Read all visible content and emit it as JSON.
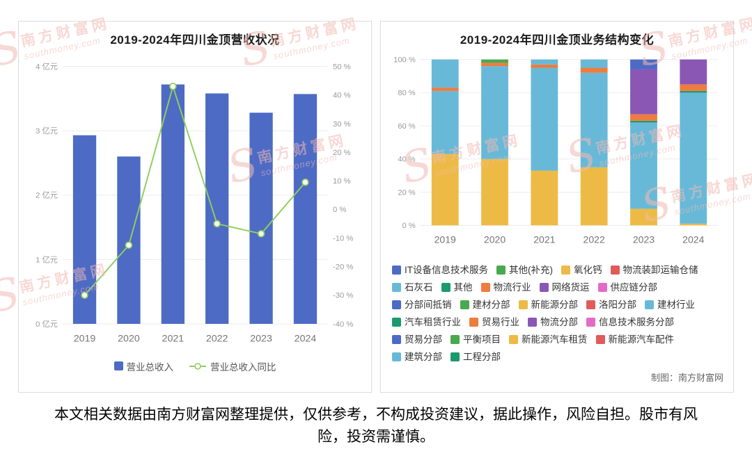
{
  "page": {
    "credit": "制图：南方财富网",
    "disclaimer": "本文相关数据由南方财富网整理提供，仅供参考，不构成投资建议，据此操作，风险自担。股市有风险，投资需谨慎。"
  },
  "watermark": {
    "initial": "S",
    "brand": "南方财富网",
    "domain": "southmoney.com"
  },
  "chart_data": [
    {
      "id": "revenue",
      "type": "bar",
      "title": "2019-2024年四川金顶营收状况",
      "categories": [
        "2019",
        "2020",
        "2021",
        "2022",
        "2023",
        "2024"
      ],
      "series": [
        {
          "name": "营业总收入",
          "kind": "bar",
          "axis": "left",
          "color": "#4d6bc5",
          "values": [
            2.93,
            2.6,
            3.72,
            3.58,
            3.28,
            3.57
          ]
        },
        {
          "name": "营业总收入同比",
          "kind": "line",
          "axis": "right",
          "color": "#8fce5f",
          "values": [
            -30,
            -12.5,
            43,
            -5,
            -8.5,
            9.5
          ]
        }
      ],
      "left_axis": {
        "min": 0,
        "max": 4,
        "step": 1,
        "suffix": " 亿元"
      },
      "right_axis": {
        "min": -40,
        "max": 50,
        "step": 10,
        "suffix": " %"
      },
      "grid": true,
      "legend_position": "bottom"
    },
    {
      "id": "structure",
      "type": "stacked-bar-percent",
      "title": "2019-2024年四川金顶业务结构变化",
      "categories": [
        "2019",
        "2020",
        "2021",
        "2022",
        "2023",
        "2024"
      ],
      "y_axis": {
        "min": 0,
        "max": 100,
        "step": 20,
        "suffix": " %"
      },
      "stacks": [
        {
          "year": "2019",
          "segments": [
            {
              "name": "氧化钙",
              "value": 43,
              "color": "#edbb45"
            },
            {
              "name": "石灰石",
              "value": 38,
              "color": "#68b9d8"
            },
            {
              "name": "物流行业",
              "value": 2,
              "color": "#ee7c3e"
            },
            {
              "name": "建材行业",
              "value": 17,
              "color": "#68b9d8"
            }
          ]
        },
        {
          "year": "2020",
          "segments": [
            {
              "name": "氧化钙",
              "value": 40,
              "color": "#edbb45"
            },
            {
              "name": "石灰石",
              "value": 56,
              "color": "#68b9d8"
            },
            {
              "name": "物流行业",
              "value": 2,
              "color": "#ee7c3e"
            },
            {
              "name": "其他(补充)",
              "value": 2,
              "color": "#49a94f"
            }
          ]
        },
        {
          "year": "2021",
          "segments": [
            {
              "name": "氧化钙",
              "value": 33,
              "color": "#edbb45"
            },
            {
              "name": "石灰石",
              "value": 62,
              "color": "#68b9d8"
            },
            {
              "name": "物流行业",
              "value": 2,
              "color": "#ee7c3e"
            },
            {
              "name": "建材行业",
              "value": 3,
              "color": "#68b9d8"
            }
          ]
        },
        {
          "year": "2022",
          "segments": [
            {
              "name": "氧化钙",
              "value": 35,
              "color": "#edbb45"
            },
            {
              "name": "石灰石",
              "value": 57,
              "color": "#68b9d8"
            },
            {
              "name": "物流行业",
              "value": 3,
              "color": "#ee7c3e"
            },
            {
              "name": "建材行业",
              "value": 5,
              "color": "#68b9d8"
            }
          ]
        },
        {
          "year": "2023",
          "segments": [
            {
              "name": "氧化钙",
              "value": 10,
              "color": "#edbb45"
            },
            {
              "name": "石灰石",
              "value": 52,
              "color": "#68b9d8"
            },
            {
              "name": "其他",
              "value": 1,
              "color": "#1c9a6e"
            },
            {
              "name": "物流行业",
              "value": 4,
              "color": "#ee7c3e"
            },
            {
              "name": "网络货运",
              "value": 27,
              "color": "#8a57b5"
            },
            {
              "name": "分部间抵销",
              "value": 6,
              "color": "#4d6bc5"
            }
          ]
        },
        {
          "year": "2024",
          "segments": [
            {
              "name": "氧化钙",
              "value": 1,
              "color": "#edbb45"
            },
            {
              "name": "建筑分部",
              "value": 79,
              "color": "#68b9d8"
            },
            {
              "name": "其他",
              "value": 1,
              "color": "#1c9a6e"
            },
            {
              "name": "物流行业",
              "value": 4,
              "color": "#ee7c3e"
            },
            {
              "name": "网络货运",
              "value": 15,
              "color": "#8a57b5"
            }
          ]
        }
      ],
      "legend": [
        {
          "label": "IT设备信息技术服务",
          "color": "#4d6bc5"
        },
        {
          "label": "其他(补充)",
          "color": "#49a94f"
        },
        {
          "label": "氧化钙",
          "color": "#edbb45"
        },
        {
          "label": "物流装卸运输仓储",
          "color": "#e15b5b"
        },
        {
          "label": "石灰石",
          "color": "#68b9d8"
        },
        {
          "label": "其他",
          "color": "#1c9a6e"
        },
        {
          "label": "物流行业",
          "color": "#ee7c3e"
        },
        {
          "label": "网络货运",
          "color": "#8a57b5"
        },
        {
          "label": "供应链分部",
          "color": "#e36bc8"
        },
        {
          "label": "分部间抵销",
          "color": "#4d6bc5"
        },
        {
          "label": "建材分部",
          "color": "#49a94f"
        },
        {
          "label": "新能源分部",
          "color": "#edbb45"
        },
        {
          "label": "洛阳分部",
          "color": "#e15b5b"
        },
        {
          "label": "建材行业",
          "color": "#68b9d8"
        },
        {
          "label": "汽车租赁行业",
          "color": "#1c9a6e"
        },
        {
          "label": "贸易行业",
          "color": "#ee7c3e"
        },
        {
          "label": "物流分部",
          "color": "#8a57b5"
        },
        {
          "label": "信息技术服务分部",
          "color": "#e36bc8"
        },
        {
          "label": "贸易分部",
          "color": "#4d6bc5"
        },
        {
          "label": "平衡项目",
          "color": "#49a94f"
        },
        {
          "label": "新能源汽车租赁",
          "color": "#edbb45"
        },
        {
          "label": "新能源汽车配件",
          "color": "#e15b5b"
        },
        {
          "label": "建筑分部",
          "color": "#68b9d8"
        },
        {
          "label": "工程分部",
          "color": "#1c9a6e"
        }
      ],
      "grid": true,
      "legend_position": "bottom"
    }
  ]
}
